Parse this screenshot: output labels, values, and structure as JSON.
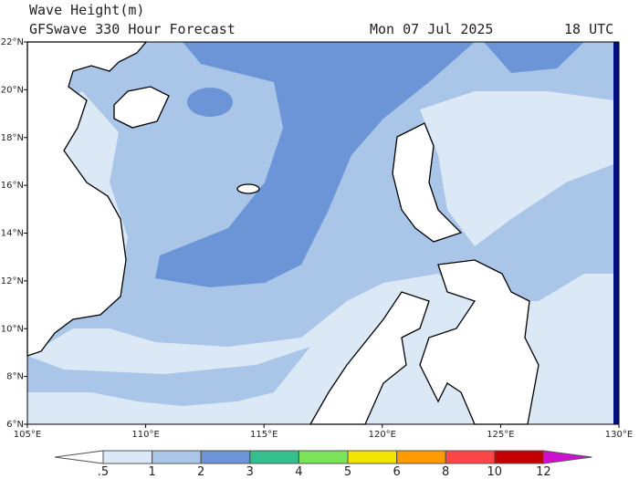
{
  "header": {
    "title": "Wave Height(m)",
    "subtitle": "GFSwave 330 Hour Forecast",
    "date": "Mon 07 Jul 2025",
    "time": "18 UTC"
  },
  "map": {
    "xlim": [
      105,
      130
    ],
    "ylim": [
      6,
      22
    ],
    "xticks": [
      {
        "value": 105,
        "label": "105°E"
      },
      {
        "value": 110,
        "label": "110°E"
      },
      {
        "value": 115,
        "label": "115°E"
      },
      {
        "value": 120,
        "label": "120°E"
      },
      {
        "value": 125,
        "label": "125°E"
      },
      {
        "value": 130,
        "label": "130°E"
      }
    ],
    "yticks": [
      {
        "value": 6,
        "label": "6°N"
      },
      {
        "value": 8,
        "label": "8°N"
      },
      {
        "value": 10,
        "label": "10°N"
      },
      {
        "value": 12,
        "label": "12°N"
      },
      {
        "value": 14,
        "label": "14°N"
      },
      {
        "value": 16,
        "label": "16°N"
      },
      {
        "value": 18,
        "label": "18°N"
      },
      {
        "value": 20,
        "label": "20°N"
      },
      {
        "value": 22,
        "label": "22°N"
      }
    ]
  },
  "colorbar": {
    "levels": [
      {
        "value": 0.5,
        "label": ".5"
      },
      1,
      2,
      3,
      4,
      5,
      6,
      8,
      10,
      12
    ],
    "colors": [
      "#ffffff",
      "#dbe8f6",
      "#a9c5e8",
      "#6b95d6",
      "#33c08c",
      "#7be35a",
      "#f2e400",
      "#ff9a00",
      "#ff4646",
      "#c40000",
      "#d010d0"
    ]
  }
}
